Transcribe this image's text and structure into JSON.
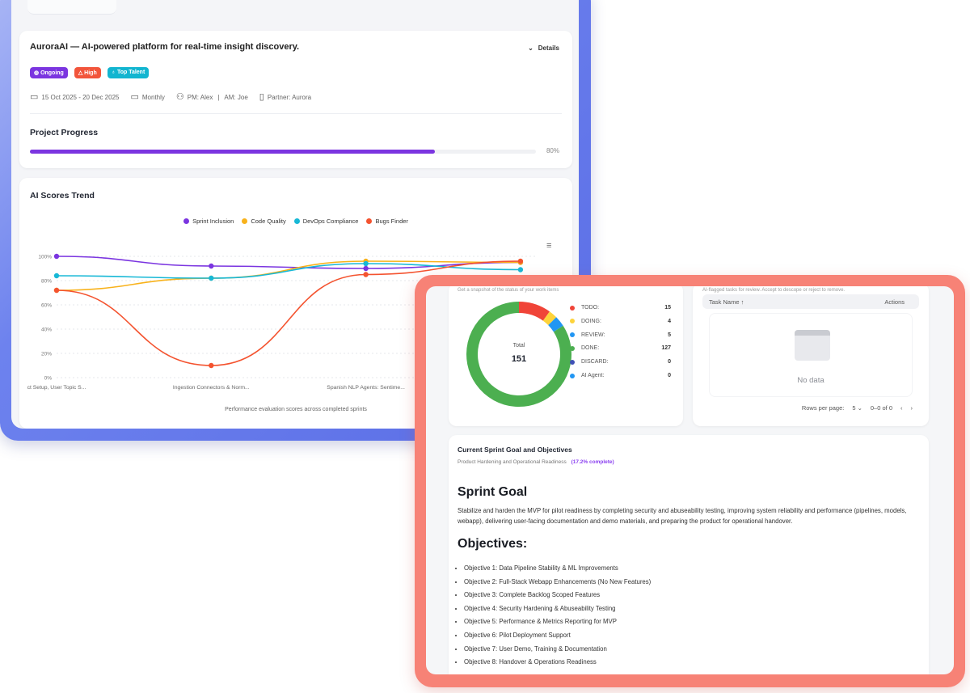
{
  "project": {
    "title": "AuroraAI — AI-powered platform for real-time insight discovery.",
    "details_label": "Details",
    "badges": [
      {
        "label": "Ongoing",
        "icon": "ongoing-icon",
        "color": "#7b35e0"
      },
      {
        "label": "High",
        "icon": "warning-icon",
        "color": "#f2553b"
      },
      {
        "label": "Top Talent",
        "icon": "award-icon",
        "color": "#12b5d0"
      }
    ],
    "dates": "15 Oct 2025 - 20 Dec 2025",
    "billing": "Monthly",
    "pm": "PM: Alex",
    "am": "AM: Joe",
    "partner": "Partner: Aurora",
    "progress_title": "Project Progress",
    "progress_percent": 80,
    "progress_label": "80%"
  },
  "chart_data": {
    "type": "line",
    "title": "AI Scores Trend",
    "subtitle": "Performance evaluation scores across completed sprints",
    "categories": [
      "ct Setup, User Topic S...",
      "Ingestion Connectors & Norm...",
      "Spanish NLP Agents: Sentime...",
      ""
    ],
    "yticks": [
      "0%",
      "20%",
      "40%",
      "60%",
      "80%",
      "100%"
    ],
    "ylim": [
      0,
      100
    ],
    "grid": true,
    "legend": "top",
    "series": [
      {
        "name": "Sprint Inclusion",
        "color": "#7b35e0",
        "values": [
          100,
          92,
          90,
          95
        ]
      },
      {
        "name": "Code Quality",
        "color": "#f8b21b",
        "values": [
          72,
          82,
          96,
          95
        ]
      },
      {
        "name": "DevOps Compliance",
        "color": "#17b8d6",
        "values": [
          84,
          82,
          94,
          89
        ]
      },
      {
        "name": "Bugs Finder",
        "color": "#f4532f",
        "values": [
          72,
          10,
          85,
          96
        ]
      }
    ]
  },
  "status": {
    "subtitle": "Get a snapshot of the status of your work items",
    "total_label": "Total",
    "total": "151",
    "items": [
      {
        "label": "TODO:",
        "value": 15,
        "color": "#f04438"
      },
      {
        "label": "DOING:",
        "value": 4,
        "color": "#fdd33b"
      },
      {
        "label": "REVIEW:",
        "value": 5,
        "color": "#2196f3"
      },
      {
        "label": "DONE:",
        "value": 127,
        "color": "#4caf50"
      },
      {
        "label": "DISCARD:",
        "value": 0,
        "color": "#3f51b5"
      },
      {
        "label": "AI Agent:",
        "value": 0,
        "color": "#2196f3"
      }
    ]
  },
  "flagged": {
    "subtitle": "AI-flagged tasks for review. Accept to descope or reject to remove.",
    "col_task": "Task Name ↑",
    "col_actions": "Actions",
    "empty": "No data",
    "rows_label": "Rows per page:",
    "rows_value": "5",
    "range": "0–0 of 0"
  },
  "sprint": {
    "title": "Current Sprint Goal and Objectives",
    "name": "Product Hardening and Operational Readiness",
    "complete": "(17.2% complete)",
    "goal_heading": "Sprint Goal",
    "goal": "Stabilize and harden the MVP for pilot readiness by completing security and abuseability testing, improving system reliability and performance (pipelines, models, webapp), delivering user-facing documentation and demo materials, and preparing the product for operational handover.",
    "objectives_heading": "Objectives:",
    "objectives": [
      "Objective 1: Data Pipeline Stability & ML Improvements",
      "Objective 2: Full-Stack Webapp Enhancements (No New Features)",
      "Objective 3: Complete Backlog Scoped Features",
      "Objective 4: Security Hardening & Abuseability Testing",
      "Objective 5: Performance & Metrics Reporting for MVP",
      "Objective 6: Pilot Deployment Support",
      "Objective 7: User Demo, Training & Documentation",
      "Objective 8: Handover & Operations Readiness"
    ]
  }
}
